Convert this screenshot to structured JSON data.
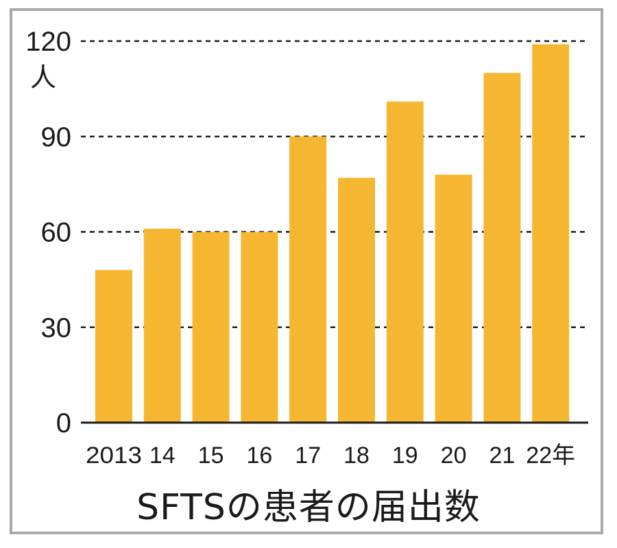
{
  "chart_data": {
    "type": "bar",
    "title": "SFTSの患者の届出数",
    "y_unit": "人",
    "x_unit": "年",
    "categories": [
      "2013",
      "14",
      "15",
      "16",
      "17",
      "18",
      "19",
      "20",
      "21",
      "22"
    ],
    "values": [
      48,
      61,
      60,
      60,
      90,
      77,
      101,
      78,
      110,
      119
    ],
    "ylim": [
      0,
      120
    ],
    "yticks": [
      0,
      30,
      60,
      90,
      120
    ],
    "grid": "dashed horizontal",
    "bar_color": "#f5b731"
  }
}
